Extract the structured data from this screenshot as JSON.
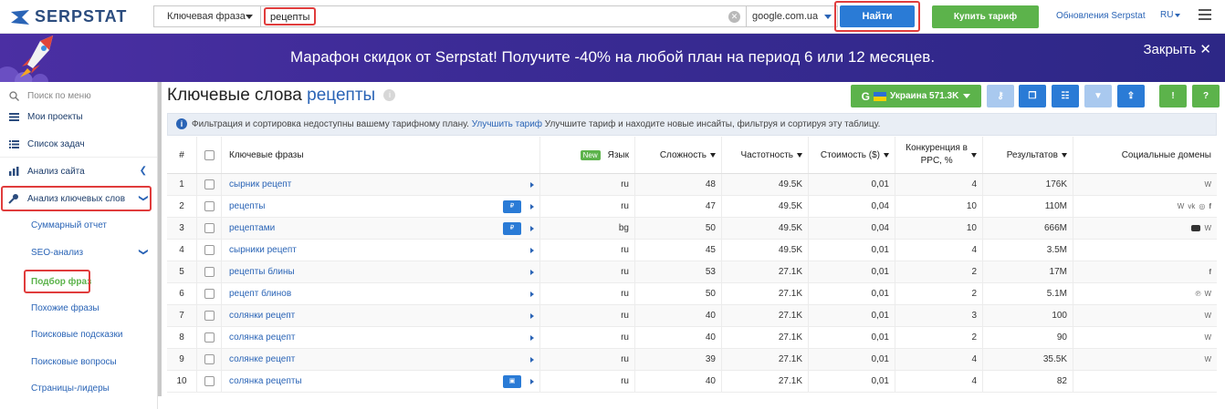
{
  "topbar": {
    "logo_text": "SERPSTAT",
    "search_type": "Ключевая фраза",
    "query": "рецепты",
    "engine": "google.com.ua",
    "find_label": "Найти",
    "buy_label": "Купить тариф",
    "updates_label": "Обновления Serpstat",
    "lang": "RU"
  },
  "banner": {
    "text": "Марафон скидок от Serpstat! Получите -40% на любой план на период 6 или 12 месяцев.",
    "close_label": "Закрыть ✕"
  },
  "sidebar": {
    "search_placeholder": "Поиск по меню",
    "items": [
      {
        "label": "Мои проекты"
      },
      {
        "label": "Список задач"
      },
      {
        "label": "Анализ сайта"
      },
      {
        "label": "Анализ ключевых слов"
      },
      {
        "label": "Суммарный отчет"
      },
      {
        "label": "SEO-анализ"
      },
      {
        "label": "Подбор фраз"
      },
      {
        "label": "Похожие фразы"
      },
      {
        "label": "Поисковые подсказки"
      },
      {
        "label": "Поисковые вопросы"
      },
      {
        "label": "Страницы-лидеры"
      }
    ]
  },
  "content": {
    "title_prefix": "Ключевые слова",
    "title_keyword": "рецепты",
    "region_label": "Украина 571.3K",
    "notice_text": "Фильтрация и сортировка недоступны вашему тарифному плану.",
    "notice_link": "Улучшить тариф",
    "notice_rest": "Улучшите тариф и находите новые инсайты, фильтруя и сортируя эту таблицу."
  },
  "table": {
    "headers": {
      "num": "#",
      "keyword": "Ключевые фразы",
      "new_badge": "New",
      "lang": "Язык",
      "difficulty": "Сложность",
      "frequency": "Частотность",
      "cost": "Стоимость ($)",
      "competition_1": "Конкуренция в",
      "competition_2": "PPC, %",
      "results": "Результатов",
      "social": "Социальные домены"
    },
    "rows": [
      {
        "n": "1",
        "kw": "сырник рецепт",
        "lang": "ru",
        "diff": "48",
        "freq": "49.5K",
        "cost": "0,01",
        "comp": "4",
        "res": "176K",
        "social": [
          "W"
        ]
      },
      {
        "n": "2",
        "kw": "рецепты",
        "lang": "ru",
        "diff": "47",
        "freq": "49.5K",
        "cost": "0,04",
        "comp": "10",
        "res": "110M",
        "social": [
          "W",
          "vk",
          "◎",
          "f"
        ]
      },
      {
        "n": "3",
        "kw": "рецептами",
        "lang": "bg",
        "diff": "50",
        "freq": "49.5K",
        "cost": "0,04",
        "comp": "10",
        "res": "666M",
        "social": [
          "yt",
          "W"
        ]
      },
      {
        "n": "4",
        "kw": "сырники рецепт",
        "lang": "ru",
        "diff": "45",
        "freq": "49.5K",
        "cost": "0,01",
        "comp": "4",
        "res": "3.5M",
        "social": []
      },
      {
        "n": "5",
        "kw": "рецепты блины",
        "lang": "ru",
        "diff": "53",
        "freq": "27.1K",
        "cost": "0,01",
        "comp": "2",
        "res": "17M",
        "social": [
          "f"
        ]
      },
      {
        "n": "6",
        "kw": "рецепт блинов",
        "lang": "ru",
        "diff": "50",
        "freq": "27.1K",
        "cost": "0,01",
        "comp": "2",
        "res": "5.1M",
        "social": [
          "℗",
          "W"
        ]
      },
      {
        "n": "7",
        "kw": "солянки рецепт",
        "lang": "ru",
        "diff": "40",
        "freq": "27.1K",
        "cost": "0,01",
        "comp": "3",
        "res": "100",
        "social": [
          "W"
        ]
      },
      {
        "n": "8",
        "kw": "солянка рецепт",
        "lang": "ru",
        "diff": "40",
        "freq": "27.1K",
        "cost": "0,01",
        "comp": "2",
        "res": "90",
        "social": [
          "W"
        ]
      },
      {
        "n": "9",
        "kw": "солянке рецепт",
        "lang": "ru",
        "diff": "39",
        "freq": "27.1K",
        "cost": "0,01",
        "comp": "4",
        "res": "35.5K",
        "social": [
          "W"
        ]
      },
      {
        "n": "10",
        "kw": "солянка рецепты",
        "lang": "ru",
        "diff": "40",
        "freq": "27.1K",
        "cost": "0,01",
        "comp": "4",
        "res": "82",
        "social": []
      }
    ]
  }
}
